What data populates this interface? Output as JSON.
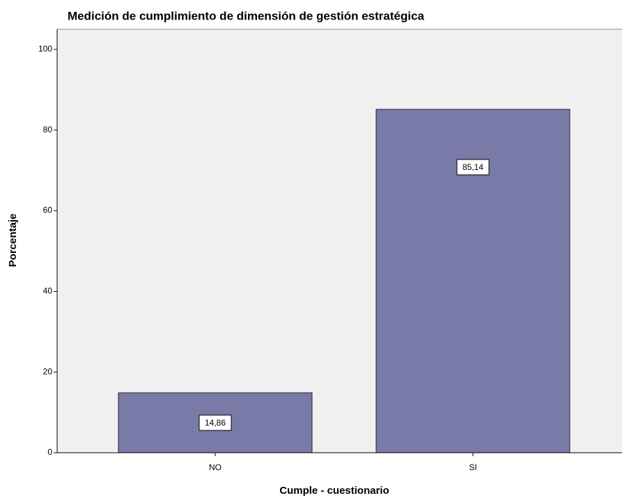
{
  "chart_data": {
    "type": "bar",
    "title": "Medición de cumplimiento de dimensión de gestión estratégica",
    "x_label": "Cumple - cuestionario",
    "y_label": "Porcentaje",
    "categories": [
      "NO",
      "SI"
    ],
    "values": [
      14.86,
      85.14
    ],
    "value_labels": [
      "14,86",
      "85,14"
    ],
    "color": "#7a7aa8",
    "ylim": [
      0,
      105
    ],
    "yticks": [
      0,
      20,
      40,
      60,
      80,
      100
    ]
  }
}
